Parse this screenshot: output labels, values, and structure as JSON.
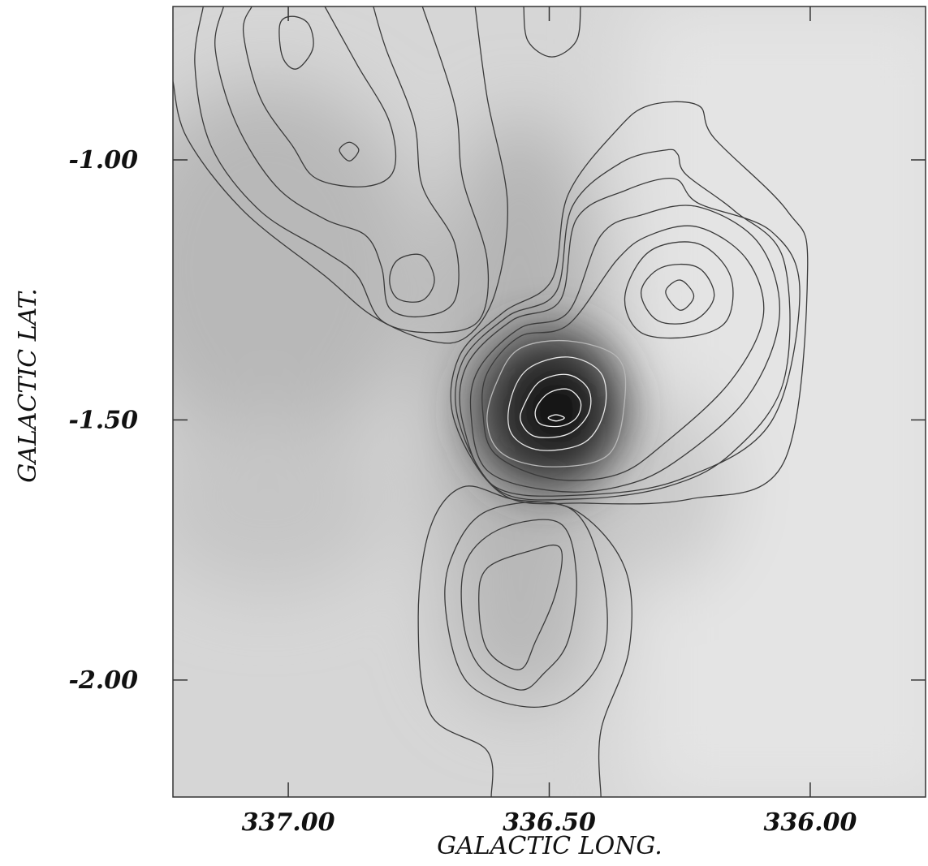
{
  "chart_data": {
    "type": "contour",
    "x_label": "GALACTIC LONG.",
    "y_label": "GALACTIC LAT.",
    "xlim": [
      337.221,
      335.779
    ],
    "ylim": [
      -2.225,
      -0.705
    ],
    "xticks": [
      {
        "value": 337,
        "label": "337.00"
      },
      {
        "value": 336.5,
        "label": "336.50"
      },
      {
        "value": 336,
        "label": "336.00"
      }
    ],
    "yticks": [
      {
        "value": -1,
        "label": "-1.00"
      },
      {
        "value": -1.5,
        "label": "-1.50"
      },
      {
        "value": -2,
        "label": "-2.00"
      }
    ],
    "contours": [
      {
        "color": "#ffffff",
        "closed": true,
        "lon": [
          336.502,
          336.487,
          336.471,
          336.487
        ],
        "lat": [
          -1.496,
          -1.49,
          -1.496,
          -1.502
        ]
      },
      {
        "color": "#f2f2f2",
        "closed": true,
        "lon": [
          336.526,
          336.502,
          336.464,
          336.44,
          336.448,
          336.479,
          336.518
        ],
        "lat": [
          -1.48,
          -1.449,
          -1.441,
          -1.465,
          -1.496,
          -1.512,
          -1.507
        ]
      },
      {
        "color": "#eeeeee",
        "closed": true,
        "lon": [
          336.549,
          336.518,
          336.464,
          336.425,
          336.425,
          336.464,
          336.526,
          336.554
        ],
        "lat": [
          -1.473,
          -1.426,
          -1.413,
          -1.441,
          -1.488,
          -1.527,
          -1.532,
          -1.504
        ]
      },
      {
        "color": "#e4e4e4",
        "closed": true,
        "lon": [
          336.575,
          336.541,
          336.464,
          336.401,
          336.394,
          336.432,
          336.518,
          336.572
        ],
        "lat": [
          -1.465,
          -1.402,
          -1.379,
          -1.41,
          -1.48,
          -1.543,
          -1.558,
          -1.527
        ]
      },
      {
        "color": "#b8b8b8",
        "closed": true,
        "lon": [
          336.6,
          336.557,
          336.464,
          336.37,
          336.355,
          336.386,
          336.495,
          336.588,
          336.619
        ],
        "lat": [
          -1.426,
          -1.363,
          -1.348,
          -1.379,
          -1.457,
          -1.566,
          -1.59,
          -1.566,
          -1.504
        ]
      },
      {
        "color": "#3a3a3a",
        "closed": true,
        "lon": [
          336.277,
          336.249,
          336.223,
          336.249
        ],
        "lat": [
          -1.254,
          -1.231,
          -1.262,
          -1.289
        ]
      },
      {
        "color": "#3a3a3a",
        "closed": true,
        "lon": [
          336.324,
          336.285,
          336.215,
          336.184,
          336.223,
          336.292
        ],
        "lat": [
          -1.254,
          -1.207,
          -1.207,
          -1.262,
          -1.309,
          -1.309
        ]
      },
      {
        "color": "#3a3a3a",
        "closed": true,
        "lon": [
          336.355,
          336.308,
          336.215,
          336.153,
          336.16,
          336.23,
          336.324
        ],
        "lat": [
          -1.262,
          -1.176,
          -1.161,
          -1.223,
          -1.309,
          -1.34,
          -1.332
        ]
      },
      {
        "color": "#3a3a3a",
        "closed": true,
        "lon": [
          336.619,
          336.557,
          336.464,
          336.37,
          336.308,
          336.215,
          336.121,
          336.09,
          336.153,
          336.277,
          336.37,
          336.495,
          336.603,
          336.627
        ],
        "lat": [
          -1.41,
          -1.34,
          -1.317,
          -1.192,
          -1.145,
          -1.129,
          -1.192,
          -1.301,
          -1.426,
          -1.543,
          -1.605,
          -1.613,
          -1.566,
          -1.488
        ]
      },
      {
        "color": "#3a3a3a",
        "closed": true,
        "lon": [
          336.635,
          336.557,
          336.464,
          336.401,
          336.324,
          336.215,
          336.098,
          336.059,
          336.121,
          336.261,
          336.37,
          336.495,
          336.619,
          336.65
        ],
        "lat": [
          -1.402,
          -1.324,
          -1.293,
          -1.145,
          -1.106,
          -1.09,
          -1.161,
          -1.301,
          -1.457,
          -1.582,
          -1.629,
          -1.636,
          -1.597,
          -1.488
        ]
      },
      {
        "color": "#3a3a3a",
        "closed": true,
        "lon": [
          336.658,
          336.572,
          336.479,
          336.448,
          336.355,
          336.261,
          336.215,
          336.075,
          336.02,
          336.075,
          336.246,
          336.432,
          336.603,
          336.666
        ],
        "lat": [
          -1.395,
          -1.309,
          -1.27,
          -1.114,
          -1.059,
          -1.036,
          -1.083,
          -1.137,
          -1.254,
          -1.504,
          -1.613,
          -1.644,
          -1.629,
          -1.504
        ]
      },
      {
        "color": "#3a3a3a",
        "closed": true,
        "lon": [
          336.666,
          336.58,
          336.487,
          336.456,
          336.362,
          336.277,
          336.254,
          336.238,
          336.145,
          336.051,
          336.051,
          336.153,
          336.277,
          336.448,
          336.596,
          336.673
        ],
        "lat": [
          -1.387,
          -1.301,
          -1.254,
          -1.09,
          -1.005,
          -0.981,
          -0.989,
          -1.028,
          -1.098,
          -1.192,
          -1.426,
          -1.566,
          -1.629,
          -1.652,
          -1.636,
          -1.504
        ]
      },
      {
        "color": "#3a3a3a",
        "closed": true,
        "lon": [
          336.673,
          336.588,
          336.495,
          336.464,
          336.37,
          336.308,
          336.215,
          336.184,
          336.044,
          336.005,
          336.051,
          336.23,
          336.432,
          336.588,
          336.681
        ],
        "lat": [
          -1.379,
          -1.293,
          -1.231,
          -1.067,
          -0.942,
          -0.895,
          -0.895,
          -0.958,
          -1.098,
          -1.207,
          -1.582,
          -1.652,
          -1.66,
          -1.644,
          -1.504
        ]
      },
      {
        "color": "#3a3a3a",
        "closed": true,
        "lon": [
          336.619,
          336.541,
          336.479,
          336.487,
          336.526,
          336.557,
          336.619,
          336.635
        ],
        "lat": [
          -1.785,
          -1.753,
          -1.746,
          -1.831,
          -1.925,
          -1.98,
          -1.941,
          -1.847
        ]
      },
      {
        "color": "#3a3a3a",
        "closed": true,
        "lon": [
          336.658,
          336.588,
          336.479,
          336.448,
          336.464,
          336.51,
          336.557,
          336.635,
          336.666
        ],
        "lat": [
          -1.769,
          -1.707,
          -1.699,
          -1.8,
          -1.925,
          -1.987,
          -2.019,
          -1.972,
          -1.878
        ]
      },
      {
        "color": "#3a3a3a",
        "closed": true,
        "lon": [
          336.689,
          336.619,
          336.464,
          336.401,
          336.394,
          336.464,
          336.557,
          336.658,
          336.697
        ],
        "lat": [
          -1.769,
          -1.675,
          -1.668,
          -1.785,
          -1.941,
          -2.034,
          -2.05,
          -2.003,
          -1.878
        ]
      },
      {
        "color": "#3a3a3a",
        "closed": false,
        "lon": [
          336.611,
          336.619,
          336.728,
          336.751,
          336.728,
          336.666,
          336.572,
          336.448,
          336.355,
          336.347,
          336.401,
          336.401
        ],
        "lat": [
          -2.225,
          -2.136,
          -2.065,
          -1.878,
          -1.707,
          -1.629,
          -1.652,
          -1.675,
          -1.785,
          -1.941,
          -2.097,
          -2.225
        ]
      },
      {
        "color": "#3a3a3a",
        "closed": true,
        "lon": [
          337.016,
          336.992,
          336.961,
          336.953,
          336.984,
          337.011
        ],
        "lat": [
          -0.739,
          -0.724,
          -0.739,
          -0.786,
          -0.825,
          -0.802
        ]
      },
      {
        "color": "#3a3a3a",
        "closed": true,
        "lon": [
          336.902,
          336.883,
          336.865,
          336.883
        ],
        "lat": [
          -0.981,
          -0.966,
          -0.981,
          -1.002
        ]
      },
      {
        "color": "#3a3a3a",
        "closed": true,
        "lon": [
          336.806,
          336.79,
          336.743,
          336.72,
          336.743,
          336.79
        ],
        "lat": [
          -1.231,
          -1.192,
          -1.184,
          -1.231,
          -1.27,
          -1.267
        ]
      },
      {
        "color": "#3a3a3a",
        "closed": false,
        "lon": [
          337.07,
          337.086,
          337.054,
          336.992,
          336.946,
          336.852,
          336.798,
          336.806,
          336.868,
          336.93
        ],
        "lat": [
          -0.705,
          -0.755,
          -0.88,
          -0.973,
          -1.036,
          -1.051,
          -1.02,
          -0.927,
          -0.817,
          -0.705
        ]
      },
      {
        "color": "#3a3a3a",
        "closed": false,
        "lon": [
          337.124,
          337.14,
          337.101,
          337.023,
          336.93,
          336.852,
          336.821,
          336.806,
          336.743,
          336.681,
          336.681,
          336.743,
          336.759,
          336.813,
          336.837
        ],
        "lat": [
          -0.705,
          -0.786,
          -0.927,
          -1.051,
          -1.114,
          -1.145,
          -1.207,
          -1.285,
          -1.301,
          -1.27,
          -1.161,
          -1.051,
          -0.927,
          -0.786,
          -0.705
        ]
      },
      {
        "color": "#3a3a3a",
        "closed": false,
        "lon": [
          337.163,
          337.179,
          337.148,
          337.054,
          336.93,
          336.868,
          336.821,
          336.728,
          336.635,
          336.619,
          336.666,
          336.681,
          336.743
        ],
        "lat": [
          -0.705,
          -0.817,
          -0.973,
          -1.098,
          -1.176,
          -1.223,
          -1.309,
          -1.332,
          -1.309,
          -1.192,
          -1.036,
          -0.895,
          -0.705
        ]
      },
      {
        "color": "#3a3a3a",
        "closed": false,
        "lon": [
          337.221,
          337.194,
          337.086,
          336.93,
          336.837,
          336.728,
          336.658,
          336.603,
          336.58,
          336.619,
          336.642
        ],
        "lat": [
          -0.849,
          -0.958,
          -1.098,
          -1.223,
          -1.301,
          -1.348,
          -1.34,
          -1.254,
          -1.083,
          -0.88,
          -0.705
        ]
      },
      {
        "color": "#3a3a3a",
        "closed": false,
        "lon": [
          336.549,
          336.541,
          336.495,
          336.448,
          336.44
        ],
        "lat": [
          -0.705,
          -0.771,
          -0.802,
          -0.771,
          -0.705
        ]
      }
    ]
  }
}
